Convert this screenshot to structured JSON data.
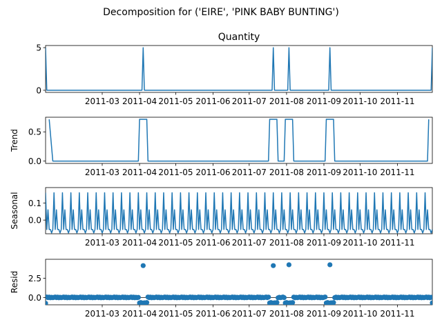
{
  "chart_data": {
    "type": "line",
    "title": "Decomposition for ('EIRE', 'PINK BABY BUNTING')",
    "color": "#1f77b4",
    "x_range": [
      "2011-01-13",
      "2011-11-30"
    ],
    "x_tick_labels": [
      "2011-03",
      "2011-04",
      "2011-05",
      "2011-06",
      "2011-07",
      "2011-08",
      "2011-09",
      "2011-10",
      "2011-11"
    ],
    "panels": [
      {
        "name": "Quantity",
        "ylabel": "",
        "title": "Quantity",
        "kind": "line",
        "ylim": [
          -0.25,
          5.25
        ],
        "yticks": [
          0,
          5
        ],
        "ytick_labels": [
          "0",
          "5"
        ],
        "points": [
          [
            "2011-01-13",
            5
          ],
          [
            "2011-01-14",
            0
          ],
          [
            "2011-04-03",
            0
          ],
          [
            "2011-04-04",
            5
          ],
          [
            "2011-04-05",
            0
          ],
          [
            "2011-07-20",
            0
          ],
          [
            "2011-07-21",
            5
          ],
          [
            "2011-07-22",
            0
          ],
          [
            "2011-08-02",
            0
          ],
          [
            "2011-08-03",
            5
          ],
          [
            "2011-08-04",
            0
          ],
          [
            "2011-09-05",
            0
          ],
          [
            "2011-09-06",
            5
          ],
          [
            "2011-09-07",
            0
          ],
          [
            "2011-11-29",
            0
          ],
          [
            "2011-11-30",
            5
          ]
        ]
      },
      {
        "name": "Trend",
        "ylabel": "Trend",
        "title": "",
        "kind": "line",
        "ylim": [
          -0.04,
          0.75
        ],
        "yticks": [
          0,
          0.5
        ],
        "ytick_labels": [
          "0.0",
          "0.5"
        ],
        "points": [
          [
            "2011-01-16",
            0.714
          ],
          [
            "2011-01-19",
            0
          ],
          [
            "2011-03-31",
            0
          ],
          [
            "2011-04-01",
            0.714
          ],
          [
            "2011-04-07",
            0.714
          ],
          [
            "2011-04-08",
            0
          ],
          [
            "2011-07-17",
            0
          ],
          [
            "2011-07-18",
            0.714
          ],
          [
            "2011-07-24",
            0.714
          ],
          [
            "2011-07-25",
            0
          ],
          [
            "2011-07-30",
            0
          ],
          [
            "2011-07-31",
            0.714
          ],
          [
            "2011-08-06",
            0.714
          ],
          [
            "2011-08-07",
            0
          ],
          [
            "2011-09-02",
            0
          ],
          [
            "2011-09-03",
            0.714
          ],
          [
            "2011-09-09",
            0.714
          ],
          [
            "2011-09-10",
            0
          ],
          [
            "2011-11-26",
            0
          ],
          [
            "2011-11-27",
            0.714
          ]
        ]
      },
      {
        "name": "Seasonal",
        "ylabel": "Seasonal",
        "title": "",
        "kind": "line",
        "ylim": [
          -0.08,
          0.19
        ],
        "yticks": [
          0,
          0.1
        ],
        "ytick_labels": [
          "0.0",
          "0.1"
        ],
        "period_days": 7,
        "pattern": [
          0.16,
          -0.055,
          0.06,
          -0.055,
          -0.055,
          -0.075,
          -0.055
        ],
        "start": "2011-01-13",
        "end": "2011-11-30"
      },
      {
        "name": "Resid",
        "ylabel": "Resid",
        "title": "",
        "kind": "scatter",
        "ylim": [
          -0.95,
          4.95
        ],
        "yticks": [
          0,
          2.5
        ],
        "ytick_labels": [
          "0.0",
          "2.5"
        ],
        "outliers": [
          [
            "2011-04-04",
            4.13
          ],
          [
            "2011-07-21",
            4.13
          ],
          [
            "2011-08-03",
            4.24
          ],
          [
            "2011-09-06",
            4.24
          ],
          [
            "2011-01-13",
            -0.75
          ],
          [
            "2011-11-30",
            -0.7
          ]
        ],
        "dips": [
          [
            "2011-04-01",
            -0.71
          ],
          [
            "2011-04-02",
            -0.66
          ],
          [
            "2011-04-03",
            -0.71
          ],
          [
            "2011-04-05",
            -0.69
          ],
          [
            "2011-04-06",
            -0.71
          ],
          [
            "2011-04-07",
            -0.66
          ],
          [
            "2011-07-18",
            -0.71
          ],
          [
            "2011-07-19",
            -0.66
          ],
          [
            "2011-07-20",
            -0.71
          ],
          [
            "2011-07-22",
            -0.69
          ],
          [
            "2011-07-23",
            -0.71
          ],
          [
            "2011-07-24",
            -0.66
          ],
          [
            "2011-07-31",
            -0.71
          ],
          [
            "2011-08-01",
            -0.66
          ],
          [
            "2011-08-02",
            -0.71
          ],
          [
            "2011-08-04",
            -0.69
          ],
          [
            "2011-08-05",
            -0.71
          ],
          [
            "2011-08-06",
            -0.66
          ],
          [
            "2011-09-03",
            -0.71
          ],
          [
            "2011-09-04",
            -0.66
          ],
          [
            "2011-09-05",
            -0.71
          ],
          [
            "2011-09-07",
            -0.69
          ],
          [
            "2011-09-08",
            -0.71
          ],
          [
            "2011-09-09",
            -0.66
          ]
        ]
      }
    ]
  }
}
